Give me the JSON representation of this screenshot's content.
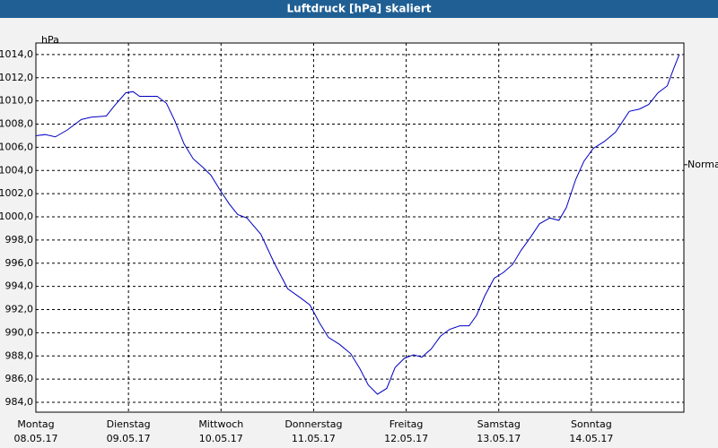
{
  "chart_data": {
    "type": "line",
    "title": "Luftdruck [hPa] skaliert",
    "y_label": "hPa",
    "x": [
      0.0,
      0.1,
      0.21,
      0.34,
      0.49,
      0.6,
      0.76,
      0.85,
      0.97,
      1.05,
      1.12,
      1.21,
      1.31,
      1.41,
      1.5,
      1.6,
      1.7,
      1.8,
      1.89,
      1.99,
      2.09,
      2.18,
      2.28,
      2.43,
      2.57,
      2.72,
      2.86,
      2.96,
      3.06,
      3.16,
      3.28,
      3.4,
      3.5,
      3.59,
      3.69,
      3.79,
      3.88,
      3.98,
      4.08,
      4.17,
      4.27,
      4.37,
      4.47,
      4.58,
      4.68,
      4.76,
      4.85,
      4.95,
      5.05,
      5.15,
      5.24,
      5.34,
      5.44,
      5.55,
      5.65,
      5.73,
      5.83,
      5.92,
      6.02,
      6.14,
      6.26,
      6.41,
      6.52,
      6.62,
      6.72,
      6.82,
      6.89,
      6.95
    ],
    "series": [
      {
        "name": "Luftdruck",
        "color": "#0000c0",
        "values": [
          1007.0,
          1007.1,
          1006.9,
          1007.5,
          1008.4,
          1008.6,
          1008.7,
          1009.6,
          1010.7,
          1010.8,
          1010.4,
          1010.4,
          1010.4,
          1009.8,
          1008.3,
          1006.3,
          1005.0,
          1004.3,
          1003.6,
          1002.3,
          1001.1,
          1000.2,
          999.9,
          998.5,
          996.1,
          993.8,
          993.0,
          992.4,
          990.9,
          989.6,
          989.0,
          988.2,
          986.9,
          985.5,
          984.7,
          985.2,
          987.0,
          987.8,
          988.1,
          987.9,
          988.6,
          989.7,
          990.3,
          990.6,
          990.6,
          991.5,
          993.2,
          994.7,
          995.2,
          995.9,
          997.1,
          998.2,
          999.4,
          999.9,
          999.7,
          1000.8,
          1003.2,
          1004.8,
          1005.9,
          1006.5,
          1007.3,
          1009.1,
          1009.3,
          1009.7,
          1010.7,
          1011.3,
          1012.8,
          1014.0
        ]
      }
    ],
    "xlim": [
      0,
      7
    ],
    "xticks": [
      0,
      1,
      2,
      3,
      4,
      5,
      6,
      7
    ],
    "x_labels": [
      {
        "weekday": "Montag",
        "date": "08.05.17"
      },
      {
        "weekday": "Dienstag",
        "date": "09.05.17"
      },
      {
        "weekday": "Mittwoch",
        "date": "10.05.17"
      },
      {
        "weekday": "Donnerstag",
        "date": "11.05.17"
      },
      {
        "weekday": "Freitag",
        "date": "12.05.17"
      },
      {
        "weekday": "Samstag",
        "date": "13.05.17"
      },
      {
        "weekday": "Sonntag",
        "date": "14.05.17"
      }
    ],
    "ylim": [
      983.15,
      1015.0
    ],
    "yticks": [
      {
        "value": 984,
        "label": "984,0"
      },
      {
        "value": 986,
        "label": "986,0"
      },
      {
        "value": 988,
        "label": "988,0"
      },
      {
        "value": 990,
        "label": "990,0"
      },
      {
        "value": 992,
        "label": "992,0"
      },
      {
        "value": 994,
        "label": "994,0"
      },
      {
        "value": 996,
        "label": "996,0"
      },
      {
        "value": 998,
        "label": "998,0"
      },
      {
        "value": 1000,
        "label": "1000,0"
      },
      {
        "value": 1002,
        "label": "1002,0"
      },
      {
        "value": 1004,
        "label": "1004,0"
      },
      {
        "value": 1006,
        "label": "1006,0"
      },
      {
        "value": 1008,
        "label": "1008,0"
      },
      {
        "value": 1010,
        "label": "1010,0"
      },
      {
        "value": 1012,
        "label": "1012,0"
      },
      {
        "value": 1014,
        "label": "1014,0"
      }
    ],
    "grid": true,
    "annotations": [
      {
        "text": "Normal",
        "y": 1004.5
      }
    ]
  }
}
